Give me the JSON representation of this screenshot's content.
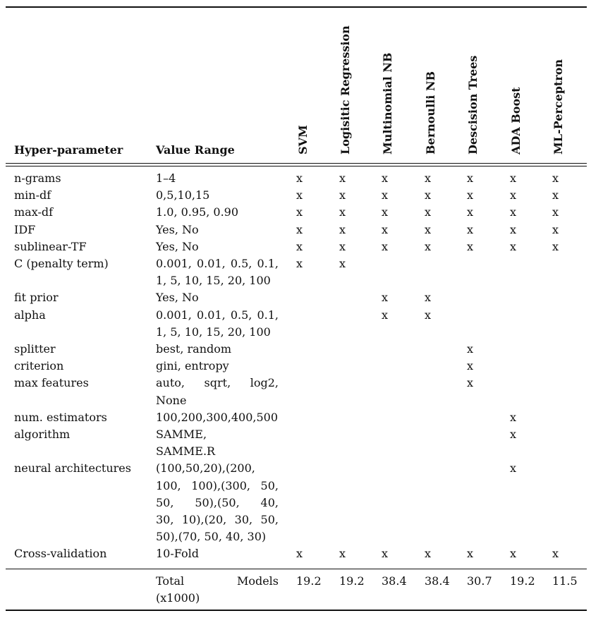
{
  "headers": {
    "param": "Hyper-parameter",
    "range": "Value Range",
    "models": [
      "SVM",
      "Logisitic Regression",
      "Multinomial NB",
      "Bernoulli NB",
      "Descision Trees",
      "ADA Boost",
      "ML-Perceptron"
    ]
  },
  "rows": [
    {
      "param": "n-grams",
      "range": [
        "1–4"
      ],
      "marks": [
        "x",
        "x",
        "x",
        "x",
        "x",
        "x",
        "x"
      ]
    },
    {
      "param": "min-df",
      "range": [
        "0,5,10,15"
      ],
      "marks": [
        "x",
        "x",
        "x",
        "x",
        "x",
        "x",
        "x"
      ]
    },
    {
      "param": "max-df",
      "range": [
        "1.0, 0.95, 0.90"
      ],
      "marks": [
        "x",
        "x",
        "x",
        "x",
        "x",
        "x",
        "x"
      ]
    },
    {
      "param": "IDF",
      "range": [
        "Yes, No"
      ],
      "marks": [
        "x",
        "x",
        "x",
        "x",
        "x",
        "x",
        "x"
      ]
    },
    {
      "param": "sublinear-TF",
      "range": [
        "Yes, No"
      ],
      "marks": [
        "x",
        "x",
        "x",
        "x",
        "x",
        "x",
        "x"
      ]
    },
    {
      "param": "C (penalty term)",
      "range": [
        "0.001, 0.01, 0.5, 0.1,",
        "1, 5, 10, 15, 20, 100"
      ],
      "marks": [
        "x",
        "x",
        "",
        "",
        "",
        "",
        ""
      ]
    },
    {
      "param": "fit prior",
      "range": [
        "Yes, No"
      ],
      "marks": [
        "",
        "",
        "x",
        "x",
        "",
        "",
        ""
      ]
    },
    {
      "param": "alpha",
      "range": [
        "0.001, 0.01, 0.5, 0.1,",
        "1, 5, 10, 15, 20, 100"
      ],
      "marks": [
        "",
        "",
        "x",
        "x",
        "",
        "",
        ""
      ]
    },
    {
      "param": "splitter",
      "range": [
        "best, random"
      ],
      "marks": [
        "",
        "",
        "",
        "",
        "x",
        "",
        ""
      ]
    },
    {
      "param": "criterion",
      "range": [
        "gini, entropy"
      ],
      "marks": [
        "",
        "",
        "",
        "",
        "x",
        "",
        ""
      ]
    },
    {
      "param": "max features",
      "range": [
        "auto,   sqrt,   log2,",
        "None"
      ],
      "marks": [
        "",
        "",
        "",
        "",
        "x",
        "",
        ""
      ]
    },
    {
      "param": "num. estimators",
      "range": [
        "100,200,300,400,500"
      ],
      "marks": [
        "",
        "",
        "",
        "",
        "",
        "x",
        ""
      ]
    },
    {
      "param": "algorithm",
      "range": [
        "SAMME,",
        "SAMME.R"
      ],
      "marks": [
        "",
        "",
        "",
        "",
        "",
        "x",
        ""
      ]
    },
    {
      "param": "neural architectures",
      "range": [
        "(100,50,20),(200,",
        "100,  100),(300,  50,",
        "50,     50),(50,    40,",
        "30,  10),(20,  30,  50,",
        "50),(70, 50, 40, 30)"
      ],
      "marks": [
        "",
        "",
        "",
        "",
        "",
        "x",
        ""
      ]
    },
    {
      "param": "Cross-validation",
      "range": [
        "10-Fold"
      ],
      "marks": [
        "x",
        "x",
        "x",
        "x",
        "x",
        "x",
        "x"
      ]
    }
  ],
  "total": {
    "label_a": "Total",
    "label_b": "Models",
    "label_c": "(x1000)",
    "values": [
      "19.2",
      "19.2",
      "38.4",
      "38.4",
      "30.7",
      "19.2",
      "11.5"
    ]
  }
}
